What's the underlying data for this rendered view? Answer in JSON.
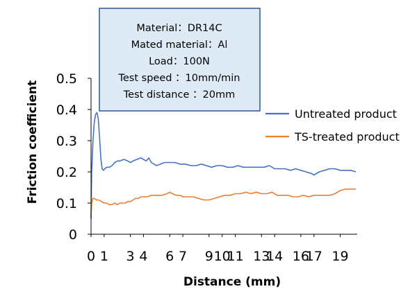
{
  "chart_data": {
    "type": "line",
    "xlabel": "Distance (mm)",
    "ylabel": "Friction coefficient",
    "xlim": [
      0,
      20.3
    ],
    "ylim": [
      0,
      0.5
    ],
    "yticks": [
      "0",
      "0.1",
      "0.2",
      "0.3",
      "0.4",
      "0.5"
    ],
    "ytick_values": [
      0,
      0.1,
      0.2,
      0.3,
      0.4,
      0.5
    ],
    "xticks": [
      "0",
      "1",
      "3",
      "4",
      "6",
      "7",
      "9",
      "10",
      "11",
      "13",
      "14",
      "16",
      "17",
      "19"
    ],
    "xtick_values": [
      0,
      1,
      3,
      4,
      6,
      7,
      9,
      10,
      11,
      13,
      14,
      16,
      17,
      19
    ],
    "grid": false,
    "legend_position": "right",
    "annotation_lines": [
      "Material：DR14C",
      "Mated material：Al",
      "Load：100N",
      "Test speed ：10mm/min",
      "Test distance ：20mm"
    ],
    "series": [
      {
        "name": "Untreated product",
        "color": "#4472C4",
        "x": [
          0,
          0.05,
          0.15,
          0.25,
          0.35,
          0.45,
          0.55,
          0.65,
          0.75,
          0.85,
          0.95,
          1.05,
          1.2,
          1.4,
          1.6,
          1.8,
          2.0,
          2.2,
          2.5,
          2.8,
          3.0,
          3.2,
          3.5,
          3.8,
          4.0,
          4.2,
          4.4,
          4.6,
          4.8,
          5.0,
          5.3,
          5.6,
          6.0,
          6.4,
          6.8,
          7.2,
          7.6,
          8.0,
          8.4,
          8.8,
          9.2,
          9.6,
          10.0,
          10.4,
          10.8,
          11.2,
          11.6,
          12.0,
          12.4,
          12.8,
          13.2,
          13.6,
          14.0,
          14.4,
          14.8,
          15.2,
          15.6,
          16.0,
          16.4,
          16.8,
          17.0,
          17.4,
          17.8,
          18.2,
          18.6,
          19.0,
          19.4,
          19.8,
          20.2
        ],
        "y": [
          0.05,
          0.2,
          0.3,
          0.36,
          0.385,
          0.39,
          0.37,
          0.31,
          0.24,
          0.21,
          0.205,
          0.21,
          0.215,
          0.215,
          0.22,
          0.23,
          0.235,
          0.235,
          0.24,
          0.235,
          0.23,
          0.235,
          0.24,
          0.245,
          0.24,
          0.235,
          0.245,
          0.23,
          0.225,
          0.22,
          0.225,
          0.23,
          0.23,
          0.23,
          0.225,
          0.225,
          0.22,
          0.22,
          0.225,
          0.22,
          0.215,
          0.22,
          0.22,
          0.215,
          0.215,
          0.22,
          0.215,
          0.215,
          0.215,
          0.215,
          0.215,
          0.22,
          0.21,
          0.21,
          0.21,
          0.205,
          0.21,
          0.205,
          0.2,
          0.195,
          0.19,
          0.2,
          0.205,
          0.21,
          0.21,
          0.205,
          0.205,
          0.205,
          0.2
        ]
      },
      {
        "name": "TS-treated product",
        "color": "#ED7D31",
        "x": [
          0,
          0.05,
          0.15,
          0.25,
          0.4,
          0.6,
          0.8,
          1.0,
          1.2,
          1.4,
          1.6,
          1.8,
          2.0,
          2.2,
          2.4,
          2.6,
          2.8,
          3.0,
          3.2,
          3.4,
          3.6,
          3.8,
          4.0,
          4.3,
          4.6,
          5.0,
          5.4,
          5.8,
          6.0,
          6.2,
          6.5,
          6.8,
          7.0,
          7.4,
          7.8,
          8.2,
          8.6,
          9.0,
          9.4,
          9.8,
          10.2,
          10.6,
          11.0,
          11.4,
          11.8,
          12.2,
          12.6,
          13.0,
          13.4,
          13.8,
          14.2,
          14.6,
          15.0,
          15.4,
          15.8,
          16.2,
          16.6,
          17.0,
          17.4,
          17.8,
          18.2,
          18.6,
          19.0,
          19.4,
          19.8,
          20.2
        ],
        "y": [
          0.05,
          0.1,
          0.115,
          0.115,
          0.11,
          0.11,
          0.105,
          0.1,
          0.1,
          0.095,
          0.095,
          0.1,
          0.095,
          0.1,
          0.1,
          0.1,
          0.105,
          0.105,
          0.11,
          0.115,
          0.115,
          0.12,
          0.12,
          0.12,
          0.125,
          0.125,
          0.125,
          0.13,
          0.135,
          0.13,
          0.125,
          0.125,
          0.12,
          0.12,
          0.12,
          0.115,
          0.11,
          0.11,
          0.115,
          0.12,
          0.125,
          0.125,
          0.13,
          0.13,
          0.135,
          0.13,
          0.135,
          0.13,
          0.13,
          0.135,
          0.125,
          0.125,
          0.125,
          0.12,
          0.12,
          0.125,
          0.12,
          0.125,
          0.125,
          0.125,
          0.125,
          0.13,
          0.14,
          0.145,
          0.145,
          0.145
        ]
      }
    ]
  }
}
